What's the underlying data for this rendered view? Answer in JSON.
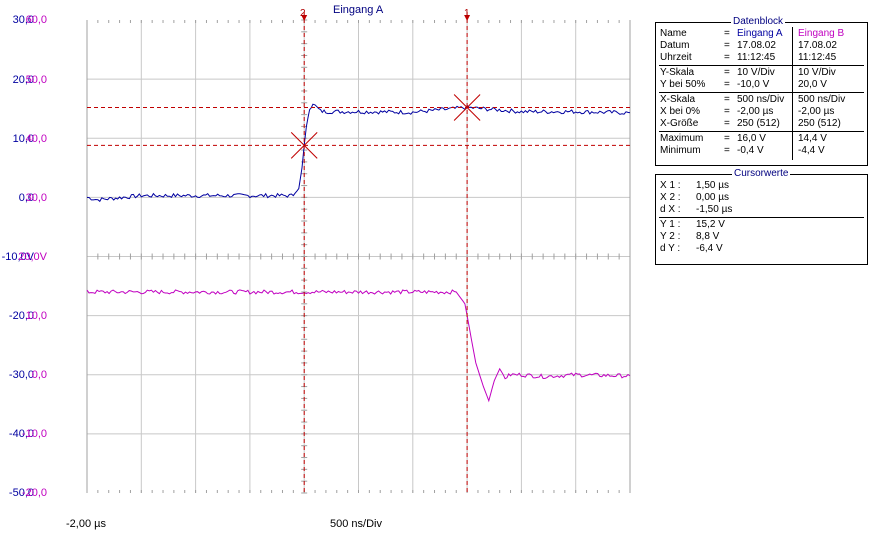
{
  "header": {
    "channel_label": "Eingang A",
    "cursor1_label": "1",
    "cursor2_label": "2"
  },
  "footer": {
    "x_start": "-2,00 µs",
    "x_scale": "500 ns/Div"
  },
  "axis_a": {
    "labels": [
      "30,0",
      "20,0",
      "10,0",
      "0,0",
      "-10,0V",
      "-20,0",
      "-30,0",
      "-40,0",
      "-50,0"
    ]
  },
  "axis_b": {
    "labels": [
      "60,0",
      "50,0",
      "40,0",
      "30,0",
      "20,0V",
      "10,0",
      "0,0",
      "-10,0",
      "-20,0"
    ]
  },
  "colors": {
    "channel_a": "#0000a0",
    "channel_b": "#c000c0",
    "cursor": "#c00000",
    "grid": "#c8c8c8",
    "text_blue": "#000080"
  },
  "datenblock": {
    "title": "Datenblock",
    "rows": [
      {
        "label": "Name",
        "eq": "=",
        "a": "Eingang A",
        "b": "Eingang B"
      },
      {
        "label": "Datum",
        "eq": "=",
        "a": "17.08.02",
        "b": "17.08.02"
      },
      {
        "label": "Uhrzeit",
        "eq": "=",
        "a": "11:12:45",
        "b": "11:12:45"
      },
      {
        "label": "Y-Skala",
        "eq": "=",
        "a": "10   V/Div",
        "b": "10   V/Div"
      },
      {
        "label": "Y bei 50%",
        "eq": "=",
        "a": "-10,0  V",
        "b": "20,0  V"
      },
      {
        "label": "X-Skala",
        "eq": "=",
        "a": "500    ns/Div",
        "b": "500    ns/Div"
      },
      {
        "label": "X bei 0%",
        "eq": "=",
        "a": "-2,00 µs",
        "b": "-2,00 µs"
      },
      {
        "label": "X-Größe",
        "eq": "=",
        "a": "250 (512)",
        "b": "250 (512)"
      },
      {
        "label": "Maximum",
        "eq": "=",
        "a": "16,0  V",
        "b": "14,4  V"
      },
      {
        "label": "Minimum",
        "eq": "=",
        "a": "-0,4  V",
        "b": "-4,4  V"
      }
    ]
  },
  "cursorwerte": {
    "title": "Cursorwerte",
    "rows": [
      {
        "label": "X 1 :",
        "value": "1,50 µs"
      },
      {
        "label": "X 2 :",
        "value": "0,00 µs"
      },
      {
        "label": "d X :",
        "value": "-1,50 µs"
      },
      {
        "label": "Y 1 :",
        "value": "15,2  V"
      },
      {
        "label": "Y 2 :",
        "value": "8,8  V"
      },
      {
        "label": "d Y :",
        "value": "-6,4  V"
      }
    ]
  },
  "chart_data": {
    "type": "line",
    "xlim": [
      -2.0,
      3.0
    ],
    "x_unit": "µs",
    "cursors": {
      "cursor_1": {
        "x": 1.5,
        "y": 15.2
      },
      "cursor_2": {
        "x": 0.0,
        "y": 8.8
      }
    },
    "series": [
      {
        "name": "Eingang A",
        "axis": "A",
        "ylim": [
          -50,
          30
        ],
        "x": [
          -2.0,
          -1.9,
          -1.5,
          -1.0,
          -0.5,
          -0.1,
          -0.05,
          -0.02,
          0.0,
          0.02,
          0.05,
          0.08,
          0.1,
          0.15,
          0.2,
          0.5,
          1.0,
          1.5,
          2.0,
          2.5,
          3.0
        ],
        "values": [
          0.0,
          -0.4,
          0.3,
          0.3,
          0.3,
          0.3,
          1.5,
          5.0,
          8.8,
          12.0,
          15.0,
          16.0,
          15.5,
          14.6,
          14.5,
          14.5,
          14.4,
          15.2,
          14.5,
          14.5,
          14.3
        ]
      },
      {
        "name": "Eingang B",
        "axis": "B",
        "ylim": [
          -20,
          60
        ],
        "x": [
          -2.0,
          -1.5,
          -1.0,
          -0.5,
          0.0,
          0.5,
          1.0,
          1.4,
          1.48,
          1.52,
          1.58,
          1.65,
          1.7,
          1.75,
          1.8,
          1.85,
          1.9,
          2.0,
          2.2,
          2.5,
          3.0
        ],
        "values": [
          14.0,
          14.0,
          14.0,
          14.0,
          14.0,
          14.0,
          14.0,
          14.0,
          12.0,
          8.0,
          2.0,
          -2.0,
          -4.4,
          -1.0,
          1.0,
          -0.5,
          0.0,
          0.0,
          -0.3,
          0.0,
          -0.2
        ]
      }
    ]
  }
}
